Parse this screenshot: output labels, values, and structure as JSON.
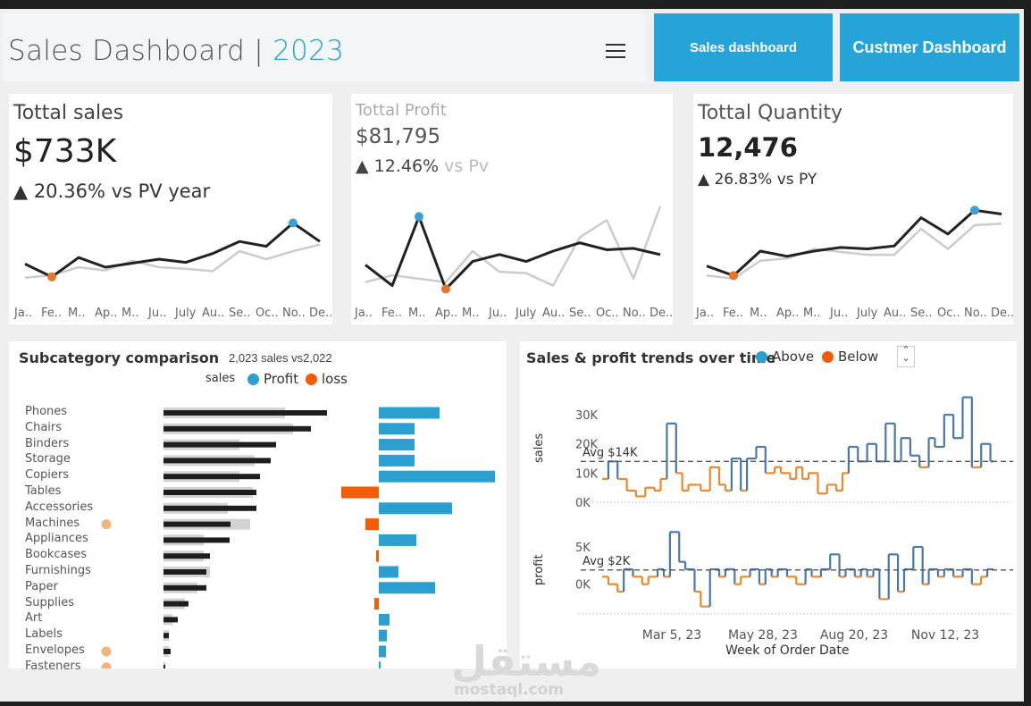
{
  "header": {
    "title": "Sales Dashboard | ",
    "year": "2023",
    "nav_sales": "Sales dashboard",
    "nav_customer": "Custmer Dashboard"
  },
  "colors": {
    "accent": "#24a4d8",
    "profit": "#2a9fd0",
    "loss": "#f25c05",
    "above": "#4a78a8",
    "below": "#e8892e",
    "cy_line": "#222222",
    "py_line": "#cccccc"
  },
  "kpis": [
    {
      "title": "Tottal sales",
      "value": "$733K",
      "delta": "▲ 20.36% vs PV year"
    },
    {
      "title": "Tottal Profit",
      "value": "$81,795",
      "delta": "▲ 12.46%",
      "delta_suffix": " vs Pv"
    },
    {
      "title": "Tottal Quantity",
      "value": "12,476",
      "delta": "▲ 26.83%  vs PY"
    }
  ],
  "months": [
    "Ja..",
    "Fe..",
    "M..",
    "Ap..",
    "M..",
    "Ju..",
    "July",
    "Au..",
    "Se..",
    "Oc..",
    "No..",
    "De.."
  ],
  "subcategory": {
    "title": "Subcategory comparison",
    "subtitle": "2,023 sales vs2,022",
    "legend_sales": "sales",
    "legend_profit": "Profit",
    "legend_loss": "loss"
  },
  "trends": {
    "title": "Sales & profit trends over time",
    "legend_above": "Above",
    "legend_below": "Below",
    "sales_axis": "sales",
    "profit_axis": "profit",
    "avg_sales": "Avg $14K",
    "avg_profit": "Avg $2K",
    "sales_ticks": [
      "30K",
      "20K",
      "10K",
      "0K"
    ],
    "profit_ticks": [
      "5K",
      "0K"
    ],
    "x_ticks": [
      "Mar 5, 23",
      "May 28, 23",
      "Aug 20, 23",
      "Nov 12, 23"
    ],
    "x_label": "Week of Order Date"
  },
  "watermark": {
    "arabic": "مستقل",
    "latin": "mostaql.com"
  },
  "chart_data": [
    {
      "type": "line",
      "title": "Tottal sales",
      "categories": [
        "Ja..",
        "Fe..",
        "M..",
        "Ap..",
        "M..",
        "Ju..",
        "July",
        "Au..",
        "Se..",
        "Oc..",
        "No..",
        "De.."
      ],
      "series": [
        {
          "values": [
            44,
            28,
            52,
            40,
            45,
            50,
            46,
            57,
            72,
            66,
            95,
            72
          ]
        },
        {
          "values": [
            27,
            30,
            40,
            36,
            48,
            40,
            38,
            35,
            60,
            50,
            60,
            68
          ]
        }
      ],
      "ylim": [
        0,
        100
      ]
    },
    {
      "type": "line",
      "title": "Tottal Profit",
      "categories": [
        "Ja..",
        "Fe..",
        "M..",
        "Ap..",
        "M..",
        "Ju..",
        "July",
        "Au..",
        "Se..",
        "Oc..",
        "No..",
        "De.."
      ],
      "series": [
        {
          "values": [
            50,
            20,
            120,
            15,
            55,
            65,
            55,
            70,
            82,
            72,
            74,
            65
          ]
        },
        {
          "values": [
            25,
            35,
            30,
            25,
            70,
            40,
            38,
            20,
            90,
            115,
            30,
            135
          ]
        }
      ],
      "ylim": [
        0,
        140
      ]
    },
    {
      "type": "line",
      "title": "Tottal Quantity",
      "categories": [
        "Ja..",
        "Fe..",
        "M..",
        "Ap..",
        "M..",
        "Ju..",
        "July",
        "Au..",
        "Se..",
        "Oc..",
        "No..",
        "De.."
      ],
      "series": [
        {
          "values": [
            45,
            32,
            65,
            58,
            65,
            70,
            68,
            72,
            110,
            88,
            120,
            115
          ]
        },
        {
          "values": [
            32,
            28,
            52,
            55,
            68,
            64,
            60,
            60,
            95,
            68,
            100,
            102
          ]
        }
      ],
      "ylim": [
        0,
        130
      ]
    },
    {
      "type": "bar",
      "title": "Subcategory comparison",
      "categories": [
        "Phones",
        "Chairs",
        "Binders",
        "Storage",
        "Copiers",
        "Tables",
        "Accessories",
        "Machines",
        "Appliances",
        "Bookcases",
        "Furnishings",
        "Paper",
        "Supplies",
        "Art",
        "Labels",
        "Envelopes",
        "Fasteners"
      ],
      "flagged": [
        "Machines",
        "Envelopes",
        "Fasteners"
      ],
      "series": [
        {
          "name": "2,023",
          "values": [
            183,
            165,
            126,
            120,
            108,
            104,
            104,
            75,
            74,
            52,
            48,
            48,
            28,
            16,
            6,
            8,
            2
          ]
        },
        {
          "name": "2,022",
          "values": [
            136,
            145,
            85,
            102,
            85,
            100,
            72,
            97,
            45,
            45,
            52,
            38,
            24,
            10,
            6,
            6,
            2
          ]
        },
        {
          "name": "Profit",
          "values": [
            68,
            40,
            40,
            40,
            130,
            -42,
            82,
            -15,
            42,
            -3,
            22,
            63,
            -5,
            12,
            9,
            8,
            2
          ]
        }
      ]
    },
    {
      "type": "line",
      "title": "Sales & profit trends over time",
      "xlabel": "Week of Order Date",
      "ylabel": "sales",
      "x_ticks": [
        "Mar 5, 23",
        "May 28, 23",
        "Aug 20, 23",
        "Nov 12, 23"
      ],
      "avg": 14,
      "series": [
        {
          "name": "sales",
          "values": [
            8,
            8,
            14,
            14,
            14,
            8,
            8,
            8,
            4,
            4,
            4,
            2,
            2,
            2,
            5,
            5,
            5,
            4,
            4,
            8,
            8,
            27,
            27,
            27,
            10,
            10,
            4,
            4,
            6,
            6,
            6,
            6,
            4,
            4,
            4,
            12,
            12,
            12,
            6,
            6,
            4,
            4,
            15,
            15,
            15,
            4,
            4,
            15,
            15,
            15,
            19,
            19,
            19,
            10,
            10,
            10,
            12,
            12,
            10,
            10,
            10,
            8,
            8,
            12,
            12,
            8,
            8,
            10,
            10,
            10,
            3,
            3,
            3,
            6,
            6,
            6,
            4,
            4,
            10,
            10,
            19,
            19,
            19,
            14,
            14,
            14,
            20,
            20,
            20,
            14,
            14,
            14,
            27,
            27,
            27,
            14,
            14,
            22,
            22,
            22,
            16,
            16,
            16,
            12,
            12,
            12,
            22,
            22,
            19,
            19,
            19,
            30,
            30,
            30,
            22,
            22,
            22,
            36,
            36,
            36,
            12,
            12,
            12,
            20,
            20,
            20,
            14,
            14
          ]
        }
      ],
      "ylim": [
        0,
        38
      ]
    },
    {
      "type": "line",
      "xlabel": "Week of Order Date",
      "ylabel": "profit",
      "avg": 1.9,
      "series": [
        {
          "name": "profit",
          "values": [
            1,
            1,
            0,
            0,
            0,
            -1,
            -1,
            2,
            2,
            2,
            1,
            1,
            1,
            0,
            0,
            1,
            1,
            1,
            2,
            2,
            1,
            1,
            7,
            7,
            7,
            3,
            3,
            2,
            2,
            2,
            -1,
            -1,
            -3,
            -3,
            -3,
            2,
            2,
            2,
            1,
            1,
            2,
            2,
            2,
            0,
            0,
            1,
            1,
            1,
            2,
            2,
            2,
            0,
            0,
            2,
            2,
            1,
            1,
            2,
            2,
            2,
            1,
            1,
            1,
            0,
            0,
            0,
            2,
            2,
            1,
            1,
            1,
            2,
            2,
            2,
            4,
            4,
            4,
            1,
            1,
            2,
            2,
            2,
            1,
            1,
            2,
            2,
            1,
            1,
            2,
            2,
            -2,
            -2,
            -2,
            4,
            4,
            4,
            -1,
            -1,
            2,
            2,
            2,
            5,
            5,
            5,
            0,
            0,
            2,
            2,
            2,
            1,
            1,
            2,
            2,
            2,
            1,
            1,
            1,
            2,
            2,
            2,
            0,
            0,
            0,
            1,
            1,
            2,
            2,
            2
          ]
        }
      ],
      "ylim": [
        -4,
        8
      ]
    }
  ]
}
